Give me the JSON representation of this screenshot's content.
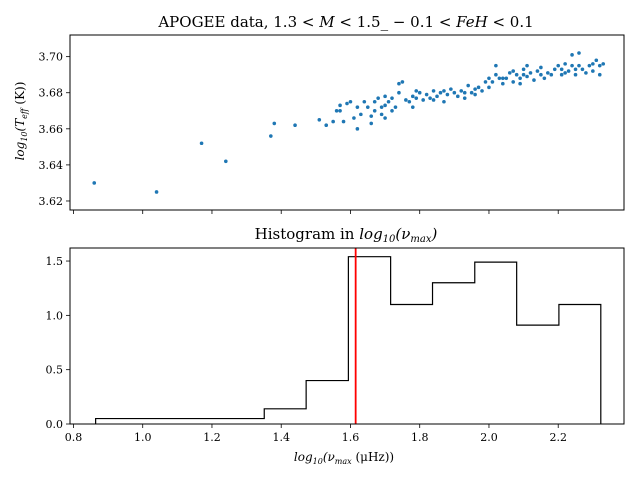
{
  "chart_data": [
    {
      "type": "scatter",
      "title": "APOGEE data, 1.3 < M < 1.5_ − 0.1 < FeH < 0.1",
      "xlabel": "",
      "ylabel": "log10(T_eff (K))",
      "xlim": [
        0.79,
        2.39
      ],
      "ylim": [
        3.615,
        3.712
      ],
      "yticks": [
        3.62,
        3.64,
        3.66,
        3.68,
        3.7
      ],
      "ytick_labels": [
        "3.62",
        "3.64",
        "3.66",
        "3.68",
        "3.70"
      ],
      "point_color": "#1f77b4",
      "points": [
        [
          0.86,
          3.63
        ],
        [
          1.04,
          3.625
        ],
        [
          1.17,
          3.652
        ],
        [
          1.24,
          3.642
        ],
        [
          1.37,
          3.656
        ],
        [
          1.38,
          3.663
        ],
        [
          1.44,
          3.662
        ],
        [
          1.51,
          3.665
        ],
        [
          1.53,
          3.662
        ],
        [
          1.55,
          3.664
        ],
        [
          1.56,
          3.67
        ],
        [
          1.57,
          3.673
        ],
        [
          1.58,
          3.664
        ],
        [
          1.59,
          3.674
        ],
        [
          1.6,
          3.675
        ],
        [
          1.61,
          3.666
        ],
        [
          1.62,
          3.66
        ],
        [
          1.62,
          3.672
        ],
        [
          1.63,
          3.668
        ],
        [
          1.64,
          3.675
        ],
        [
          1.65,
          3.672
        ],
        [
          1.66,
          3.663
        ],
        [
          1.67,
          3.675
        ],
        [
          1.67,
          3.67
        ],
        [
          1.68,
          3.677
        ],
        [
          1.69,
          3.668
        ],
        [
          1.69,
          3.672
        ],
        [
          1.7,
          3.666
        ],
        [
          1.7,
          3.678
        ],
        [
          1.71,
          3.675
        ],
        [
          1.72,
          3.67
        ],
        [
          1.72,
          3.677
        ],
        [
          1.73,
          3.672
        ],
        [
          1.74,
          3.68
        ],
        [
          1.74,
          3.685
        ],
        [
          1.75,
          3.686
        ],
        [
          1.76,
          3.676
        ],
        [
          1.77,
          3.675
        ],
        [
          1.78,
          3.672
        ],
        [
          1.79,
          3.677
        ],
        [
          1.79,
          3.681
        ],
        [
          1.8,
          3.68
        ],
        [
          1.81,
          3.676
        ],
        [
          1.82,
          3.679
        ],
        [
          1.83,
          3.677
        ],
        [
          1.84,
          3.681
        ],
        [
          1.85,
          3.678
        ],
        [
          1.86,
          3.68
        ],
        [
          1.87,
          3.675
        ],
        [
          1.87,
          3.681
        ],
        [
          1.88,
          3.679
        ],
        [
          1.89,
          3.682
        ],
        [
          1.9,
          3.68
        ],
        [
          1.91,
          3.678
        ],
        [
          1.92,
          3.681
        ],
        [
          1.93,
          3.68
        ],
        [
          1.93,
          3.677
        ],
        [
          1.94,
          3.684
        ],
        [
          1.95,
          3.68
        ],
        [
          1.96,
          3.682
        ],
        [
          1.97,
          3.683
        ],
        [
          1.98,
          3.681
        ],
        [
          1.99,
          3.686
        ],
        [
          2.0,
          3.683
        ],
        [
          2.0,
          3.688
        ],
        [
          2.01,
          3.686
        ],
        [
          2.02,
          3.69
        ],
        [
          2.02,
          3.695
        ],
        [
          2.03,
          3.688
        ],
        [
          2.04,
          3.685
        ],
        [
          2.05,
          3.688
        ],
        [
          2.06,
          3.691
        ],
        [
          2.07,
          3.692
        ],
        [
          2.07,
          3.686
        ],
        [
          2.08,
          3.69
        ],
        [
          2.09,
          3.688
        ],
        [
          2.09,
          3.685
        ],
        [
          2.1,
          3.69
        ],
        [
          2.1,
          3.693
        ],
        [
          2.11,
          3.689
        ],
        [
          2.12,
          3.691
        ],
        [
          2.13,
          3.687
        ],
        [
          2.14,
          3.692
        ],
        [
          2.15,
          3.69
        ],
        [
          2.15,
          3.694
        ],
        [
          2.17,
          3.691
        ],
        [
          2.18,
          3.69
        ],
        [
          2.19,
          3.693
        ],
        [
          2.2,
          3.695
        ],
        [
          2.21,
          3.693
        ],
        [
          2.21,
          3.69
        ],
        [
          2.22,
          3.691
        ],
        [
          2.23,
          3.692
        ],
        [
          2.24,
          3.695
        ],
        [
          2.24,
          3.701
        ],
        [
          2.25,
          3.69
        ],
        [
          2.25,
          3.693
        ],
        [
          2.26,
          3.702
        ],
        [
          2.26,
          3.695
        ],
        [
          2.27,
          3.693
        ],
        [
          2.28,
          3.691
        ],
        [
          2.29,
          3.695
        ],
        [
          2.3,
          3.696
        ],
        [
          2.3,
          3.692
        ],
        [
          2.31,
          3.698
        ],
        [
          2.32,
          3.69
        ],
        [
          2.32,
          3.695
        ],
        [
          2.33,
          3.696
        ],
        [
          1.57,
          3.67
        ],
        [
          1.66,
          3.667
        ],
        [
          1.7,
          3.673
        ],
        [
          1.78,
          3.678
        ],
        [
          1.84,
          3.676
        ],
        [
          1.96,
          3.679
        ],
        [
          2.04,
          3.688
        ],
        [
          2.11,
          3.695
        ],
        [
          2.16,
          3.688
        ],
        [
          2.22,
          3.696
        ]
      ]
    },
    {
      "type": "histogram",
      "title": "Histogram in log10(ν_max)",
      "xlabel": "log10(ν_max (μHz))",
      "ylabel": "",
      "xlim": [
        0.79,
        2.39
      ],
      "ylim": [
        0,
        1.62
      ],
      "xticks": [
        0.8,
        1.0,
        1.2,
        1.4,
        1.6,
        1.8,
        2.0,
        2.2
      ],
      "xtick_labels": [
        "0.8",
        "1.0",
        "1.2",
        "1.4",
        "1.6",
        "1.8",
        "2.0",
        "2.2"
      ],
      "yticks": [
        0.0,
        0.5,
        1.0,
        1.5
      ],
      "ytick_labels": [
        "0.0",
        "0.5",
        "1.0",
        "1.5"
      ],
      "bin_edges": [
        0.864,
        1.351,
        1.472,
        1.594,
        1.716,
        1.837,
        1.959,
        2.08,
        2.202,
        2.323
      ],
      "values": [
        0.05,
        0.14,
        0.4,
        1.54,
        1.1,
        1.3,
        1.49,
        0.91,
        1.1
      ],
      "vline_x": 1.615,
      "vline_color": "#ff0000"
    }
  ]
}
